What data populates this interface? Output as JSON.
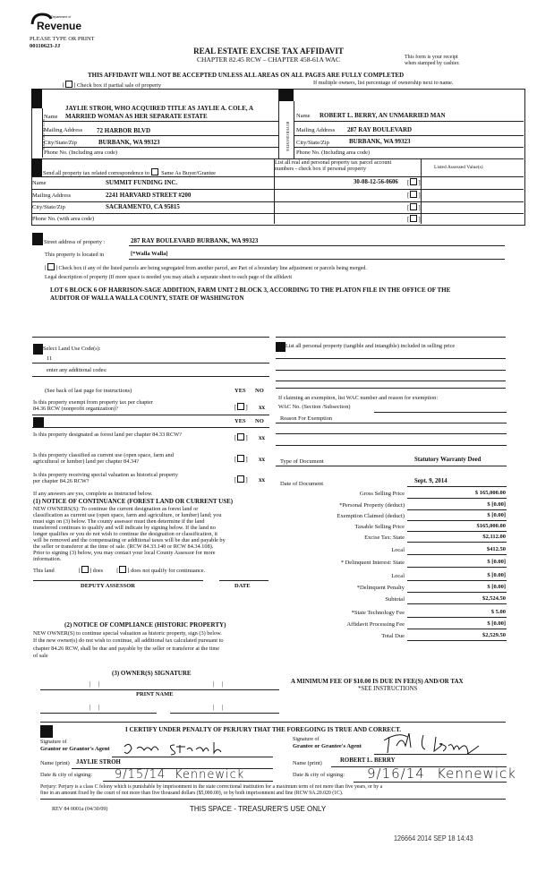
{
  "header": {
    "logo_text": "Department of Revenue Washington State",
    "title": "REAL ESTATE EXCISE TAX AFFIDAVIT",
    "subtitle": "CHAPTER 82.45 RCW – CHAPTER 458-61A WAC",
    "please_type": "PLEASE TYPE OR PRINT",
    "form_id": "00110623-JJ",
    "receipt_line1": "This form is your receipt",
    "receipt_line2": "when stamped by cashier.",
    "warning": "THIS AFFIDAVIT WILL NOT BE ACCEPTED UNLESS ALL AREAS ON ALL PAGES ARE FULLY COMPLETED",
    "partial_sale": "Check box if partial sale of property",
    "multiple_owners": "If multiple owners, list percentage of ownership next to name."
  },
  "seller": {
    "side_label": "SELLER GRANTOR",
    "name_label": "Name",
    "name_line1": "JAYLIE STROH, WHO ACQUIRED TITLE AS JAYLIE A. COLE, A",
    "name_line2": "MARRIED WOMAN AS HER SEPARATE ESTATE",
    "address_label": "Mailing Address",
    "address": "72 HARBOR BLVD",
    "city_label": "City/State/Zip",
    "city": "BURBANK, WA 99323",
    "phone_label": "Phone No. (Including area code)"
  },
  "buyer": {
    "side_label": "BUYER GRANTEE",
    "name_label": "Name",
    "name": "ROBERT L. BERRY, AN UNMARRIED MAN",
    "address_label": "Mailing Address",
    "address": "287 RAY BOULEVARD",
    "city_label": "City/State/Zip",
    "city": "BURBANK, WA 99323",
    "phone_label": "Phone No. (Including area code)"
  },
  "correspondence": {
    "label": "Send all property tax related correspondence to",
    "same_as": "Same As Buyer/Grantee",
    "name_label": "Name",
    "name": "SUMMIT FUNDING INC.",
    "address_label": "Mailing Address",
    "address": "2241 HARVARD STREET #200",
    "city_label": "City/State/Zip",
    "city": "SACRAMENTO, CA 95815",
    "phone_label": "Phone No. (with area code)"
  },
  "parcels": {
    "header_line1": "List all real and personal property tax parcel account",
    "header_line2": "numbers - check box if personal property",
    "assessed_header": "Listed Assessed Value(s)",
    "rows": [
      "30-08-12-56-0606",
      "",
      "",
      ""
    ]
  },
  "property": {
    "street_label": "Street address of property :",
    "street": "287 RAY BOULEVARD  BURBANK, WA  99323",
    "located_label": "This property is located in",
    "located": "[*Walla Walla]",
    "segregated": "Check box if any of the listed parcels are being segregated from another parcel, are Part of a boundary line adjustment or parcels being merged.",
    "legal_label": "Legal description of property (If more space is needed you may attach a separate sheet to each page of the affidavit",
    "legal_line1": "LOT 6 BLOCK 6 OF HARRISON-SAGE ADDITION, FARM UNIT 2 BLOCK 3, ACCORDING TO THE PLATON FILE IN THE OFFICE OF THE",
    "legal_line2": "AUDITOR OF WALLA WALLA COUNTY, STATE OF WASHINGTON"
  },
  "land_use": {
    "label": "Select Land Use Code(s):",
    "code": "11",
    "additional": "enter any additional codes:",
    "personal_property": "List all personal property (tangible and intangible) included in selling price"
  },
  "questions": {
    "instructions": "(See back of last page for instructions)",
    "yes": "YES",
    "no": "NO",
    "q1_line1": "Is this property exempt from property tax per chapter",
    "q1_line2": "84.36 RCW (nonprofit organization)?",
    "q2": "Is this property designated as forest land per chapter 84.33 RCW?",
    "q3_line1": "Is this property classified as current use (open space, farm and",
    "q3_line2": "agricultural or lumber) land per chapter 84.34?",
    "q4_line1": "Is this property receiving special valuation as historical property",
    "q4_line2": "per chapter 84.26 RCW?",
    "no_mark": "xx"
  },
  "notice1": {
    "intro": "If any answers are yes, complete as instructed below.",
    "title": "(1) NOTICE OF CONTINUANCE  (FOREST LAND OR CURRENT USE)",
    "lines": [
      "NEW OWNERS(S): To continue the current designation as forest land or",
      "classification as current use (open space, farm and agriculture, or lumber) land; you",
      "must sign on (3) below.  The county assessor must then determine if the land",
      "transferred continues to qualify and will indicate by signing below.  If the land no",
      "longer qualifies or you do not wish to continue the designation or classification, it",
      "will be removed and the compensating or additional taxes will be due and payable by",
      "the seller or transferor at the time of sale.  (RCW 84.33.140 or RCW 84.34.108).",
      "Prior to signing (3) below, you may contact your local County Assessor for more",
      "information."
    ],
    "this_land": "This land",
    "does": "does",
    "does_not": "does not qualify for continuance.",
    "deputy": "DEPUTY ASSESSOR",
    "date": "DATE"
  },
  "notice2": {
    "title": "(2) NOTICE OF COMPLIANCE (HISTORIC PROPERTY)",
    "lines": [
      "NEW OWNER(S) to continue special valuation as historic property, sign (3) below.",
      "If the new owner(s) do not wish to continue, all additional tax calculated pursuant to",
      "chapter 84.26 RCW, shall be due and payable by the seller or transferor at the time",
      "of sale"
    ],
    "signature_title": "(3) OWNER(S) SIGNATURE",
    "print_name": "PRINT NAME"
  },
  "exemption": {
    "claiming": "If claiming an exemption, list WAC number and reason for exemption:",
    "wac_label": "WAC No. (Section /Subsection)",
    "reason_label": "Reason For Exemption"
  },
  "document": {
    "type_label": "Type of Document",
    "type": "Statutory Warranty Deed",
    "date_label": "Date of Document",
    "date": "Sept. 9, 2014"
  },
  "tax_lines": [
    {
      "label": "Gross Selling Price",
      "value": "$ 165,000.00"
    },
    {
      "label": "*Personal Property (deduct)",
      "value": "$ [0.00]"
    },
    {
      "label": "Exemption Claimed (deduct)",
      "value": "$ [0.00]"
    },
    {
      "label": "Taxable Selling Price",
      "value": "$165,000.00"
    },
    {
      "label": "Excise Tax: State",
      "value": "$2,112.00"
    },
    {
      "label": "Local",
      "value": "$412.50"
    },
    {
      "label": "* Delinquent Interest:    State",
      "value": "$ [0.00]"
    },
    {
      "label": "Local",
      "value": "$ [0.00]"
    },
    {
      "label": "*Delinquent Penalty",
      "value": "$ [0.00]"
    },
    {
      "label": "Subtotal",
      "value": "$2,524.50"
    },
    {
      "label": "*State Technology Fee",
      "value": "$ 5.00"
    },
    {
      "label": "Affidavit Processing Fee",
      "value": "$ [0.00]"
    },
    {
      "label": "Total Due",
      "value": "$2,529.50"
    }
  ],
  "min_fee": {
    "line1": "A MINIMUM FEE OF $10.00 IS DUE IN FEE(S) AND/OR TAX",
    "line2": "*SEE INSTRUCTIONS"
  },
  "certify": {
    "statement": "I CERTIFY UNDER PENALTY OF PERJURY THAT THE FOREGOING IS TRUE AND CORRECT.",
    "grantor_sig_label1": "Signature of",
    "grantor_sig_label2": "Grantor or Grantor's Agent",
    "grantor_signature": "Jaylie Stroh",
    "grantor_name_label": "Name (print)",
    "grantor_name": "JAYLIE STROH",
    "grantor_date_label": "Date & city of signing:",
    "grantor_date": "9/15/14",
    "grantor_city": "Kennewick",
    "grantee_sig_label1": "Signature of",
    "grantee_sig_label2": "Grantee or Grantee's Agent",
    "grantee_signature": "Robert L Berry",
    "grantee_name_label": "Name (print)",
    "grantee_name": "ROBERT L. BERRY",
    "grantee_date_label": "Date & city of signing:",
    "grantee_date": "9/16/14",
    "grantee_city": "Kennewick"
  },
  "footer": {
    "perjury_line1": "Perjury:  Perjury is a class C felony which is punishable by imprisonment in the state correctional institution for a maximum term of not more than five years, or by a",
    "perjury_line2": "fine in an amount fixed by the court of not more than five thousand dollars ($5,000.00), or by both imprisonment and fine (RCW 9A.20.020 (1C).",
    "rev": "REV 84 0001a (04/30/09)",
    "treasurer": "THIS SPACE - TREASURER'S USE ONLY",
    "stamp": "126664 2014 SEP 18 14:43"
  }
}
